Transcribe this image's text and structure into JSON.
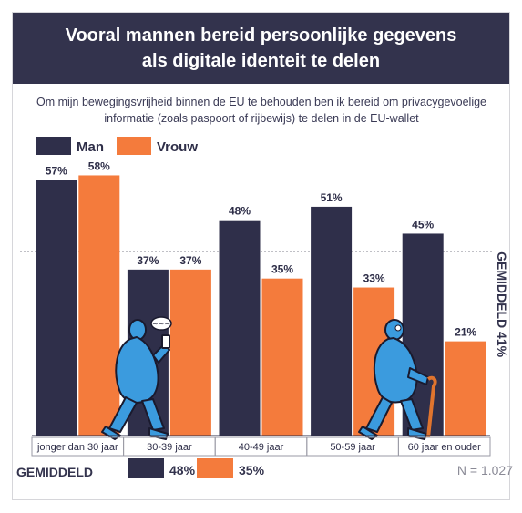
{
  "header": {
    "title_line1": "Vooral mannen bereid persoonlijke gegevens",
    "title_line2": "als digitale identeit te delen"
  },
  "subtitle": {
    "line1": "Om mijn bewegingsvrijheid binnen de EU te behouden ben ik bereid om privacygevoelige",
    "line2": "informatie (zoals paspoort of rijbewijs) te delen in de EU-wallet"
  },
  "colors": {
    "man": "#2f2f4a",
    "vrouw": "#f47b3c",
    "header": "#33334d",
    "figure": "#3b9bde"
  },
  "chart_data": {
    "type": "bar",
    "categories": [
      "jonger dan 30 jaar",
      "30-39 jaar",
      "40-49 jaar",
      "50-59 jaar",
      "60 jaar en ouder"
    ],
    "series": [
      {
        "name": "Man",
        "values": [
          57,
          37,
          48,
          51,
          45
        ]
      },
      {
        "name": "Vrouw",
        "values": [
          58,
          37,
          35,
          33,
          21
        ]
      }
    ],
    "value_labels": {
      "Man": [
        "57%",
        "37%",
        "48%",
        "51%",
        "45%"
      ],
      "Vrouw": [
        "58%",
        "37%",
        "35%",
        "33%",
        "21%"
      ]
    },
    "ylim": [
      0,
      65
    ],
    "reference_line": {
      "value": 41,
      "label": "GEMIDDELD 41%"
    },
    "legend_placement": "top-left",
    "grid": false
  },
  "footer": {
    "average_label": "GEMIDDELD",
    "average_man": "48%",
    "average_vrouw": "35%",
    "sample_size": "N = 1.027"
  },
  "illustrations": [
    "walking-person-with-phone-icon",
    "elderly-person-with-cane-icon",
    "speech-bubble-icon"
  ]
}
